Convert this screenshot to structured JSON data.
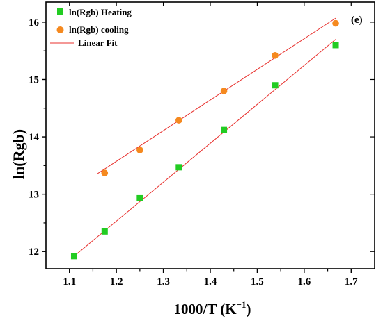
{
  "chart_data": {
    "type": "scatter",
    "panel_label": "(e)",
    "xlabel": "1000/T (K",
    "xlabel_superscript": "−1",
    "xlabel_suffix": ")",
    "ylabel": "ln(Rgb)",
    "xlim": [
      1.05,
      1.75
    ],
    "ylim": [
      11.7,
      16.35
    ],
    "xticks": [
      1.1,
      1.2,
      1.3,
      1.4,
      1.5,
      1.6,
      1.7
    ],
    "xtick_labels": [
      "1.1",
      "1.2",
      "1.3",
      "1.4",
      "1.5",
      "1.6",
      "1.7"
    ],
    "yticks": [
      12,
      13,
      14,
      15,
      16
    ],
    "ytick_labels": [
      "12",
      "13",
      "14",
      "15",
      "16"
    ],
    "grid": false,
    "legend_position": "top-left",
    "series": [
      {
        "name": "ln(Rgb) Heating",
        "marker": "square",
        "color": "#22cc22",
        "x": [
          1.11,
          1.175,
          1.25,
          1.333,
          1.429,
          1.538,
          1.667
        ],
        "y": [
          11.92,
          12.35,
          12.93,
          13.47,
          14.12,
          14.9,
          15.6
        ],
        "fit": {
          "x": [
            1.11,
            1.667
          ],
          "y": [
            11.92,
            15.7
          ]
        }
      },
      {
        "name": "ln(Rgb) cooling",
        "marker": "circle",
        "color": "#f5891f",
        "x": [
          1.175,
          1.25,
          1.333,
          1.429,
          1.538,
          1.667
        ],
        "y": [
          13.37,
          13.77,
          14.29,
          14.8,
          15.42,
          15.98
        ],
        "fit": {
          "x": [
            1.16,
            1.667
          ],
          "y": [
            13.36,
            16.07
          ]
        }
      }
    ],
    "fit_legend": {
      "name": "Linear Fit",
      "color": "#e8312e"
    }
  }
}
